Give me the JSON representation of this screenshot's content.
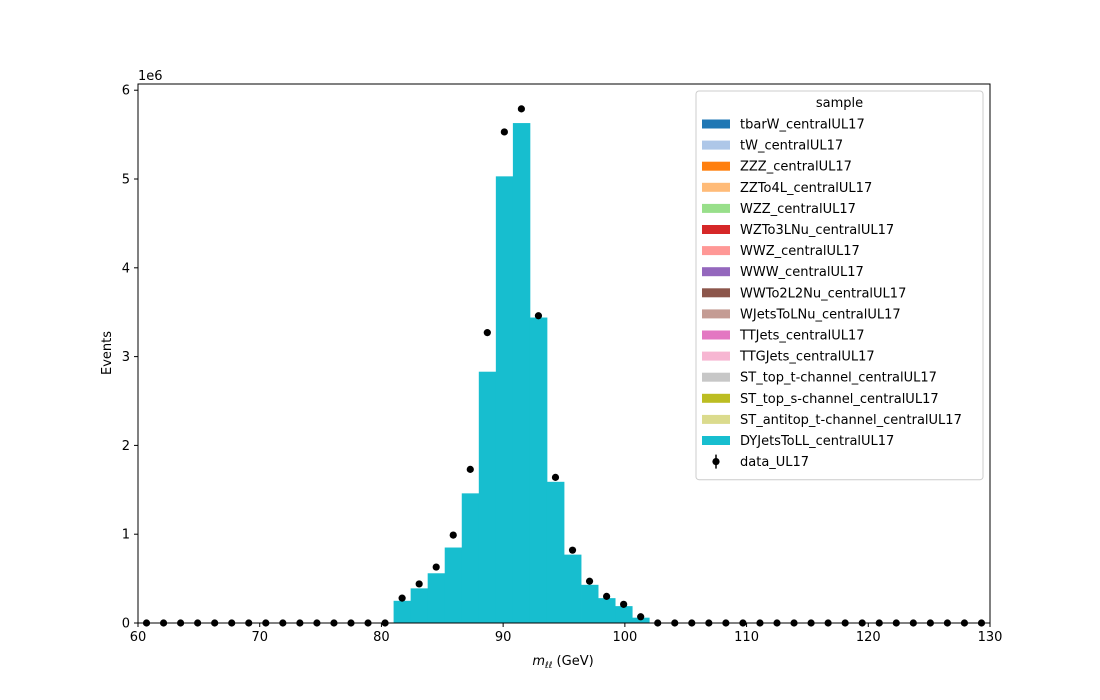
{
  "chart_data": {
    "type": "bar",
    "stacked": true,
    "xlabel_prefix": "m",
    "xlabel_subscript": "ℓℓ",
    "xlabel_suffix": " (GeV)",
    "ylabel": "Events",
    "y_multiplier": "1e6",
    "xlim": [
      60,
      130
    ],
    "ylim": [
      0,
      6.07
    ],
    "x_ticks": [
      60,
      70,
      80,
      90,
      100,
      110,
      120,
      130
    ],
    "y_ticks": [
      0,
      1,
      2,
      3,
      4,
      5,
      6
    ],
    "grid": false,
    "legend": {
      "title": "sample",
      "position": "top-right",
      "entries": [
        {
          "name": "tbarW_centralUL17",
          "color": "#1f77b4",
          "kind": "patch"
        },
        {
          "name": "tW_centralUL17",
          "color": "#aec7e8",
          "kind": "patch"
        },
        {
          "name": "ZZZ_centralUL17",
          "color": "#ff7f0e",
          "kind": "patch"
        },
        {
          "name": "ZZTo4L_centralUL17",
          "color": "#ffbb78",
          "kind": "patch"
        },
        {
          "name": "WZZ_centralUL17",
          "color": "#98df8a",
          "kind": "patch"
        },
        {
          "name": "WZTo3LNu_centralUL17",
          "color": "#d62728",
          "kind": "patch"
        },
        {
          "name": "WWZ_centralUL17",
          "color": "#ff9896",
          "kind": "patch"
        },
        {
          "name": "WWW_centralUL17",
          "color": "#9467bd",
          "kind": "patch"
        },
        {
          "name": "WWTo2L2Nu_centralUL17",
          "color": "#8c564b",
          "kind": "patch"
        },
        {
          "name": "WJetsToLNu_centralUL17",
          "color": "#c49c94",
          "kind": "patch"
        },
        {
          "name": "TTJets_centralUL17",
          "color": "#e377c2",
          "kind": "patch"
        },
        {
          "name": "TTGJets_centralUL17",
          "color": "#f7b6d2",
          "kind": "patch"
        },
        {
          "name": "ST_top_t-channel_centralUL17",
          "color": "#c7c7c7",
          "kind": "patch"
        },
        {
          "name": "ST_top_s-channel_centralUL17",
          "color": "#bcbd22",
          "kind": "patch"
        },
        {
          "name": "ST_antitop_t-channel_centralUL17",
          "color": "#dbdb8d",
          "kind": "patch"
        },
        {
          "name": "DYJetsToLL_centralUL17",
          "color": "#17becf",
          "kind": "patch"
        },
        {
          "name": "data_UL17",
          "color": "#000000",
          "kind": "errorbar-marker"
        }
      ]
    },
    "bin_edges": [
      60.0,
      61.4,
      62.8,
      64.2,
      65.6,
      67.0,
      68.4,
      69.8,
      71.2,
      72.6,
      74.0,
      75.4,
      76.8,
      78.2,
      79.6,
      81.0,
      82.4,
      83.8,
      85.2,
      86.6,
      88.0,
      89.4,
      90.8,
      92.2,
      93.6,
      95.0,
      96.4,
      97.8,
      99.2,
      100.6,
      102.0,
      103.4,
      104.8,
      106.2,
      107.6,
      109.0,
      110.4,
      111.8,
      113.2,
      114.6,
      116.0,
      117.4,
      118.8,
      120.2,
      121.6,
      123.0,
      124.4,
      125.8,
      127.2,
      128.6,
      130.0
    ],
    "series": [
      {
        "name": "DYJetsToLL_centralUL17",
        "values": [
          0,
          0,
          0,
          0,
          0,
          0,
          0,
          0,
          0,
          0,
          0,
          0,
          0,
          0,
          0,
          0.25,
          0.39,
          0.56,
          0.85,
          1.46,
          2.83,
          5.03,
          5.63,
          3.44,
          1.59,
          0.77,
          0.43,
          0.28,
          0.19,
          0.06,
          0,
          0,
          0,
          0,
          0,
          0,
          0,
          0,
          0,
          0,
          0,
          0,
          0,
          0,
          0,
          0,
          0,
          0,
          0,
          0
        ]
      }
    ],
    "data_points": {
      "name": "data_UL17",
      "x": [
        60.7,
        62.1,
        63.5,
        64.9,
        66.3,
        67.7,
        69.1,
        70.5,
        71.9,
        73.3,
        74.7,
        76.1,
        77.5,
        78.9,
        80.3,
        81.7,
        83.1,
        84.5,
        85.9,
        87.3,
        88.7,
        90.1,
        91.5,
        92.9,
        94.3,
        95.7,
        97.1,
        98.5,
        99.9,
        101.3,
        102.7,
        104.1,
        105.5,
        106.9,
        108.3,
        109.7,
        111.1,
        112.5,
        113.9,
        115.3,
        116.7,
        118.1,
        119.5,
        120.9,
        122.3,
        123.7,
        125.1,
        126.5,
        127.9,
        129.3
      ],
      "y": [
        0,
        0,
        0,
        0,
        0,
        0,
        0,
        0,
        0,
        0,
        0,
        0,
        0,
        0,
        0,
        0.28,
        0.44,
        0.63,
        0.99,
        1.73,
        3.27,
        5.53,
        5.79,
        3.46,
        1.64,
        0.82,
        0.47,
        0.3,
        0.21,
        0.07,
        0,
        0,
        0,
        0,
        0,
        0,
        0,
        0,
        0,
        0,
        0,
        0,
        0,
        0,
        0,
        0,
        0,
        0,
        0,
        0
      ]
    }
  }
}
